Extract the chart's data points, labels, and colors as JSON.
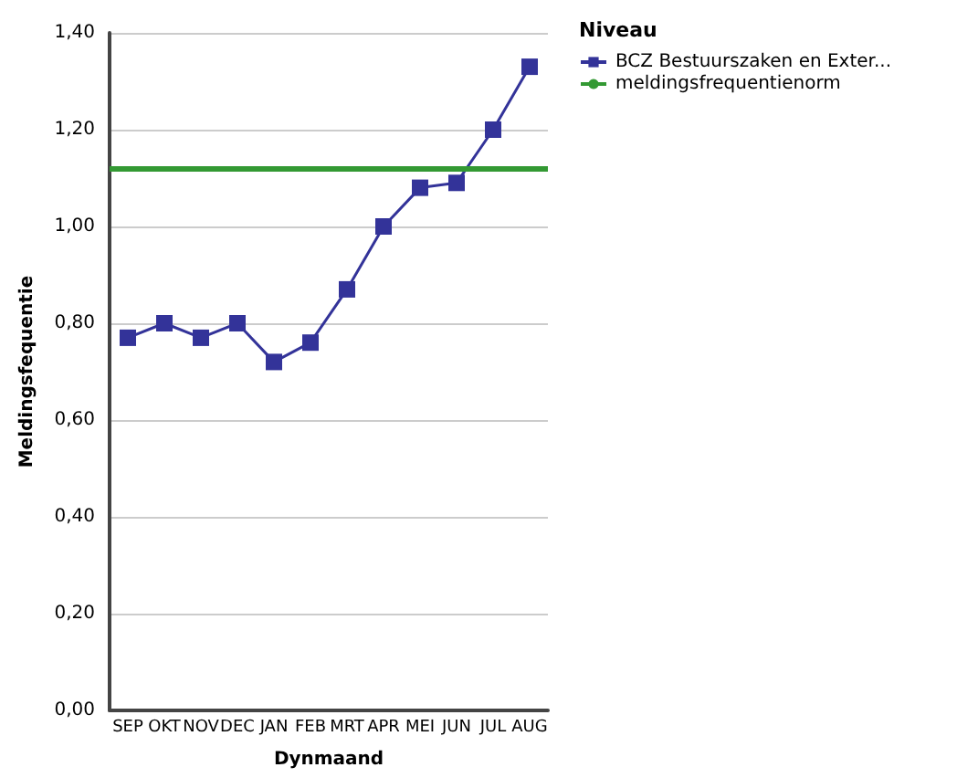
{
  "chart_data": {
    "type": "line",
    "xlabel": "Dynmaand",
    "ylabel": "Meldingsfequentie",
    "legend_title": "Niveau",
    "categories": [
      "SEP",
      "OKT",
      "NOV",
      "DEC",
      "JAN",
      "FEB",
      "MRT",
      "APR",
      "MEI",
      "JUN",
      "JUL",
      "AUG"
    ],
    "series": [
      {
        "name": "BCZ Bestuurszaken en Exter...",
        "color": "#333399",
        "values": [
          0.77,
          0.8,
          0.77,
          0.8,
          0.72,
          0.76,
          0.87,
          1.0,
          1.08,
          1.09,
          1.2,
          1.33
        ]
      }
    ],
    "ref_lines": [
      {
        "axis": "y",
        "value": 1.12,
        "label": "meldingsfrequentienorm",
        "color": "#339933"
      }
    ],
    "ylim": [
      0,
      1.4
    ],
    "yticks": [
      {
        "value": 0,
        "label": "0,00"
      },
      {
        "value": 0.2,
        "label": "0,20"
      },
      {
        "value": 0.4,
        "label": "0,40"
      },
      {
        "value": 0.6,
        "label": "0,60"
      },
      {
        "value": 0.8,
        "label": "0,80"
      },
      {
        "value": 1.0,
        "label": "1,00"
      },
      {
        "value": 1.2,
        "label": "1,20"
      },
      {
        "value": 1.4,
        "label": "1,40"
      }
    ],
    "grid": "y",
    "legend": "top right",
    "marker": "square",
    "line_style": "solid"
  }
}
